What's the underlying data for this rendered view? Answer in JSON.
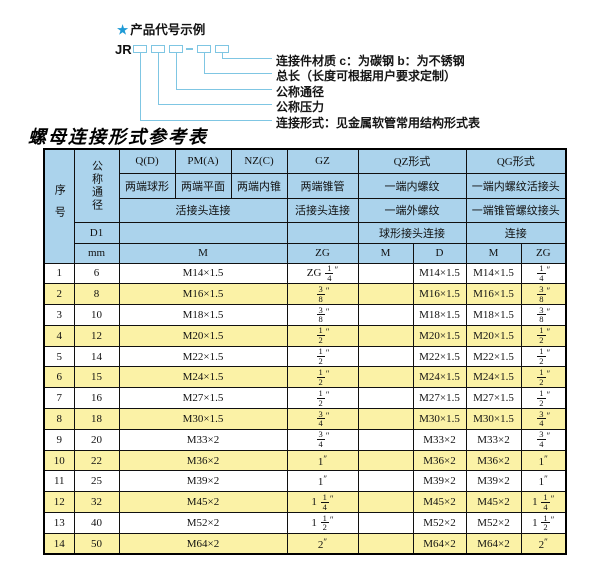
{
  "diagram": {
    "star": "★",
    "title": "产品代号示例",
    "code_prefix": "JR",
    "labels": [
      "连接件材质  c：为碳钢  b：为不锈钢",
      "总长（长度可根据用户要求定制）",
      "公称通径",
      "公称压力",
      "连接形式：见金属软管常用结构形式表"
    ],
    "accent_color": "#7fc6e3",
    "star_color": "#1e9ad6"
  },
  "page_title": "螺母连接形式参考表",
  "table": {
    "colors": {
      "header_bg": "#abd3ec",
      "row_bg": "#ffffff",
      "row_alt_bg": "#fbf2a6",
      "border": "#101010"
    },
    "header": {
      "seq": "序号",
      "dn": "公称通径",
      "d1": "D1",
      "mm": "mm",
      "groups": [
        "Q(D)",
        "PM(A)",
        "NZ(C)",
        "GZ",
        "QZ形式",
        "QG形式"
      ],
      "end_types": [
        "两端球形",
        "两端平面",
        "两端内锥",
        "两端锥管",
        "一端内螺纹",
        "一端内螺纹活接头"
      ],
      "conn_types": [
        "活接头连接",
        "活接头连接",
        "一端外螺纹",
        "一端锥管螺纹接头"
      ],
      "conn_row4": [
        "球形接头连接",
        "连接"
      ],
      "thread_cols": [
        "M",
        "ZG",
        "M",
        "D",
        "M",
        "ZG"
      ]
    },
    "rows": [
      [
        "1",
        "6",
        "M14×1.5",
        "ZG 1/4″",
        "",
        "M14×1.5",
        "M14×1.5",
        "1/4″"
      ],
      [
        "2",
        "8",
        "M16×1.5",
        "3/8″",
        "",
        "M16×1.5",
        "M16×1.5",
        "3/8″"
      ],
      [
        "3",
        "10",
        "M18×1.5",
        "3/8″",
        "",
        "M18×1.5",
        "M18×1.5",
        "3/8″"
      ],
      [
        "4",
        "12",
        "M20×1.5",
        "1/2″",
        "",
        "M20×1.5",
        "M20×1.5",
        "1/2″"
      ],
      [
        "5",
        "14",
        "M22×1.5",
        "1/2″",
        "",
        "M22×1.5",
        "M22×1.5",
        "1/2″"
      ],
      [
        "6",
        "15",
        "M24×1.5",
        "1/2″",
        "",
        "M24×1.5",
        "M24×1.5",
        "1/2″"
      ],
      [
        "7",
        "16",
        "M27×1.5",
        "1/2″",
        "",
        "M27×1.5",
        "M27×1.5",
        "1/2″"
      ],
      [
        "8",
        "18",
        "M30×1.5",
        "3/4″",
        "",
        "M30×1.5",
        "M30×1.5",
        "3/4″"
      ],
      [
        "9",
        "20",
        "M33×2",
        "3/4″",
        "",
        "M33×2",
        "M33×2",
        "3/4″"
      ],
      [
        "10",
        "22",
        "M36×2",
        "1″",
        "",
        "M36×2",
        "M36×2",
        "1″"
      ],
      [
        "11",
        "25",
        "M39×2",
        "1″",
        "",
        "M39×2",
        "M39×2",
        "1″"
      ],
      [
        "12",
        "32",
        "M45×2",
        "1 1/4″",
        "",
        "M45×2",
        "M45×2",
        "1 1/4″"
      ],
      [
        "13",
        "40",
        "M52×2",
        "1 1/2″",
        "",
        "M52×2",
        "M52×2",
        "1 1/2″"
      ],
      [
        "14",
        "50",
        "M64×2",
        "2″",
        "",
        "M64×2",
        "M64×2",
        "2″"
      ]
    ]
  }
}
